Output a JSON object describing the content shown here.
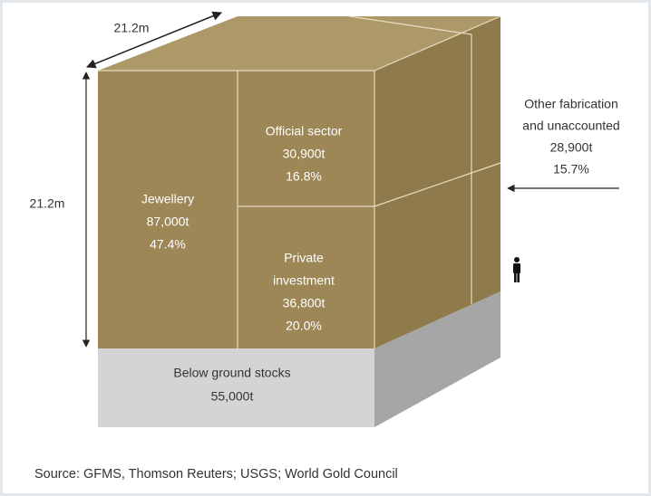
{
  "dimensions": {
    "depth": "21.2m",
    "height": "21.2m"
  },
  "segments": [
    {
      "label_lines": [
        "Jewellery"
      ],
      "amount": "87,000t",
      "share": "47.4%"
    },
    {
      "label_lines": [
        "Official sector"
      ],
      "amount": "30,900t",
      "share": "16.8%"
    },
    {
      "label_lines": [
        "Private",
        "investment"
      ],
      "amount": "36,800t",
      "share": "20.0%"
    },
    {
      "label_lines": [
        "Other fabrication",
        "and unaccounted"
      ],
      "amount": "28,900t",
      "share": "15.7%"
    }
  ],
  "base": {
    "label": "Below ground stocks",
    "amount": "55,000t"
  },
  "source": "Source: GFMS, Thomson Reuters; USGS; World Gold Council"
}
